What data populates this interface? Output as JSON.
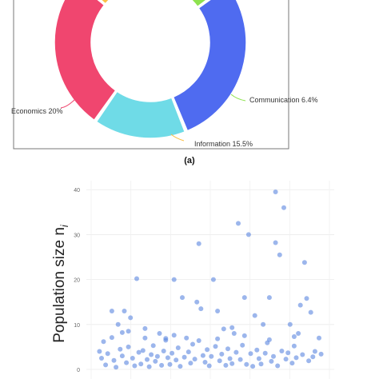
{
  "panel_a_label": "(a)",
  "chart_data": [
    {
      "type": "pie",
      "variant": "donut",
      "labels": [
        "Economics 20%",
        "Information 15.5%",
        "Communication 6.4%",
        "",
        ""
      ],
      "values": [
        20,
        15.5,
        6.4,
        22,
        12
      ],
      "colors": [
        "#f0466f",
        "#fbbf45",
        "#8ee24f",
        "#4f6bf0",
        "#6fdbe7"
      ]
    },
    {
      "type": "scatter",
      "ylabel": "Population size n",
      "ylabel_subscript": "i",
      "ylim": [
        0,
        42
      ],
      "yticks": [
        "0",
        "10",
        "20",
        "30",
        "40"
      ],
      "point_color": "#5a86e0",
      "points": [
        [
          1,
          13
        ],
        [
          1.3,
          10
        ],
        [
          1.6,
          13
        ],
        [
          2.2,
          20.2
        ],
        [
          1.9,
          11.5
        ],
        [
          1.8,
          8.5
        ],
        [
          2.6,
          7
        ],
        [
          3.3,
          8
        ],
        [
          3.6,
          6.5
        ],
        [
          4,
          20
        ],
        [
          4.4,
          16
        ],
        [
          4.6,
          7
        ],
        [
          5.1,
          15
        ],
        [
          5.3,
          13.5
        ],
        [
          5.2,
          28
        ],
        [
          5.9,
          20
        ],
        [
          6.1,
          13
        ],
        [
          6.4,
          9
        ],
        [
          6.9,
          8
        ],
        [
          7.1,
          32.5
        ],
        [
          7.6,
          30
        ],
        [
          7.4,
          16
        ],
        [
          7.9,
          12
        ],
        [
          8.3,
          10
        ],
        [
          8.9,
          39.5
        ],
        [
          9.3,
          36
        ],
        [
          8.9,
          28.2
        ],
        [
          9.1,
          25.5
        ],
        [
          8.6,
          16
        ],
        [
          9.6,
          10
        ],
        [
          10,
          8
        ],
        [
          10.3,
          23.8
        ],
        [
          10.4,
          15.8
        ],
        [
          10.6,
          12.7
        ],
        [
          10.1,
          14.3
        ],
        [
          10.8,
          4
        ],
        [
          11,
          7
        ],
        [
          0.4,
          4
        ],
        [
          0.5,
          2.5
        ],
        [
          0.7,
          1
        ],
        [
          0.8,
          3.5
        ],
        [
          1.1,
          2
        ],
        [
          1.2,
          0.5
        ],
        [
          1.4,
          4.5
        ],
        [
          1.5,
          3
        ],
        [
          1.7,
          1.5
        ],
        [
          1.8,
          5
        ],
        [
          2.0,
          2.5
        ],
        [
          2.1,
          0.8
        ],
        [
          2.3,
          3.8
        ],
        [
          2.4,
          1.2
        ],
        [
          2.5,
          4.2
        ],
        [
          2.7,
          2.2
        ],
        [
          2.8,
          0.6
        ],
        [
          2.9,
          3.3
        ],
        [
          3.0,
          5.3
        ],
        [
          3.1,
          1.8
        ],
        [
          3.2,
          2.9
        ],
        [
          3.4,
          0.9
        ],
        [
          3.5,
          4.1
        ],
        [
          3.7,
          2.6
        ],
        [
          3.8,
          1.1
        ],
        [
          3.9,
          3.6
        ],
        [
          4.1,
          2.1
        ],
        [
          4.2,
          4.8
        ],
        [
          4.3,
          0.7
        ],
        [
          4.5,
          2.7
        ],
        [
          4.7,
          3.9
        ],
        [
          4.8,
          1.4
        ],
        [
          4.9,
          5.6
        ],
        [
          5.0,
          2.3
        ],
        [
          5.4,
          3.1
        ],
        [
          5.5,
          1.6
        ],
        [
          5.6,
          4.4
        ],
        [
          5.7,
          0.8
        ],
        [
          5.8,
          2.9
        ],
        [
          6.0,
          5.1
        ],
        [
          6.2,
          1.9
        ],
        [
          6.3,
          3.4
        ],
        [
          6.5,
          0.9
        ],
        [
          6.6,
          4.6
        ],
        [
          6.7,
          2.4
        ],
        [
          6.8,
          1.3
        ],
        [
          7.0,
          3.8
        ],
        [
          7.2,
          2.2
        ],
        [
          7.3,
          5.4
        ],
        [
          7.5,
          1.1
        ],
        [
          7.7,
          3.5
        ],
        [
          7.8,
          0.7
        ],
        [
          8.0,
          4.3
        ],
        [
          8.1,
          2.4
        ],
        [
          8.2,
          1.2
        ],
        [
          8.4,
          3.6
        ],
        [
          8.5,
          5.9
        ],
        [
          8.7,
          1.8
        ],
        [
          8.8,
          2.9
        ],
        [
          9.0,
          0.8
        ],
        [
          9.2,
          4.1
        ],
        [
          9.4,
          2.3
        ],
        [
          9.5,
          3.7
        ],
        [
          9.7,
          1.4
        ],
        [
          9.8,
          5.2
        ],
        [
          9.9,
          2.6
        ],
        [
          10.2,
          3.3
        ],
        [
          10.5,
          1.9
        ],
        [
          10.7,
          2.8
        ],
        [
          11.1,
          3.4
        ],
        [
          0.6,
          6.2
        ],
        [
          1.0,
          7.1
        ],
        [
          3.6,
          6.9
        ],
        [
          4.0,
          7.6
        ],
        [
          5.2,
          6.4
        ],
        [
          6.1,
          6.8
        ],
        [
          7.4,
          7.5
        ],
        [
          8.6,
          6.6
        ],
        [
          9.8,
          7.3
        ],
        [
          2.6,
          9.1
        ],
        [
          6.8,
          9.3
        ],
        [
          1.5,
          8.2
        ]
      ]
    }
  ]
}
